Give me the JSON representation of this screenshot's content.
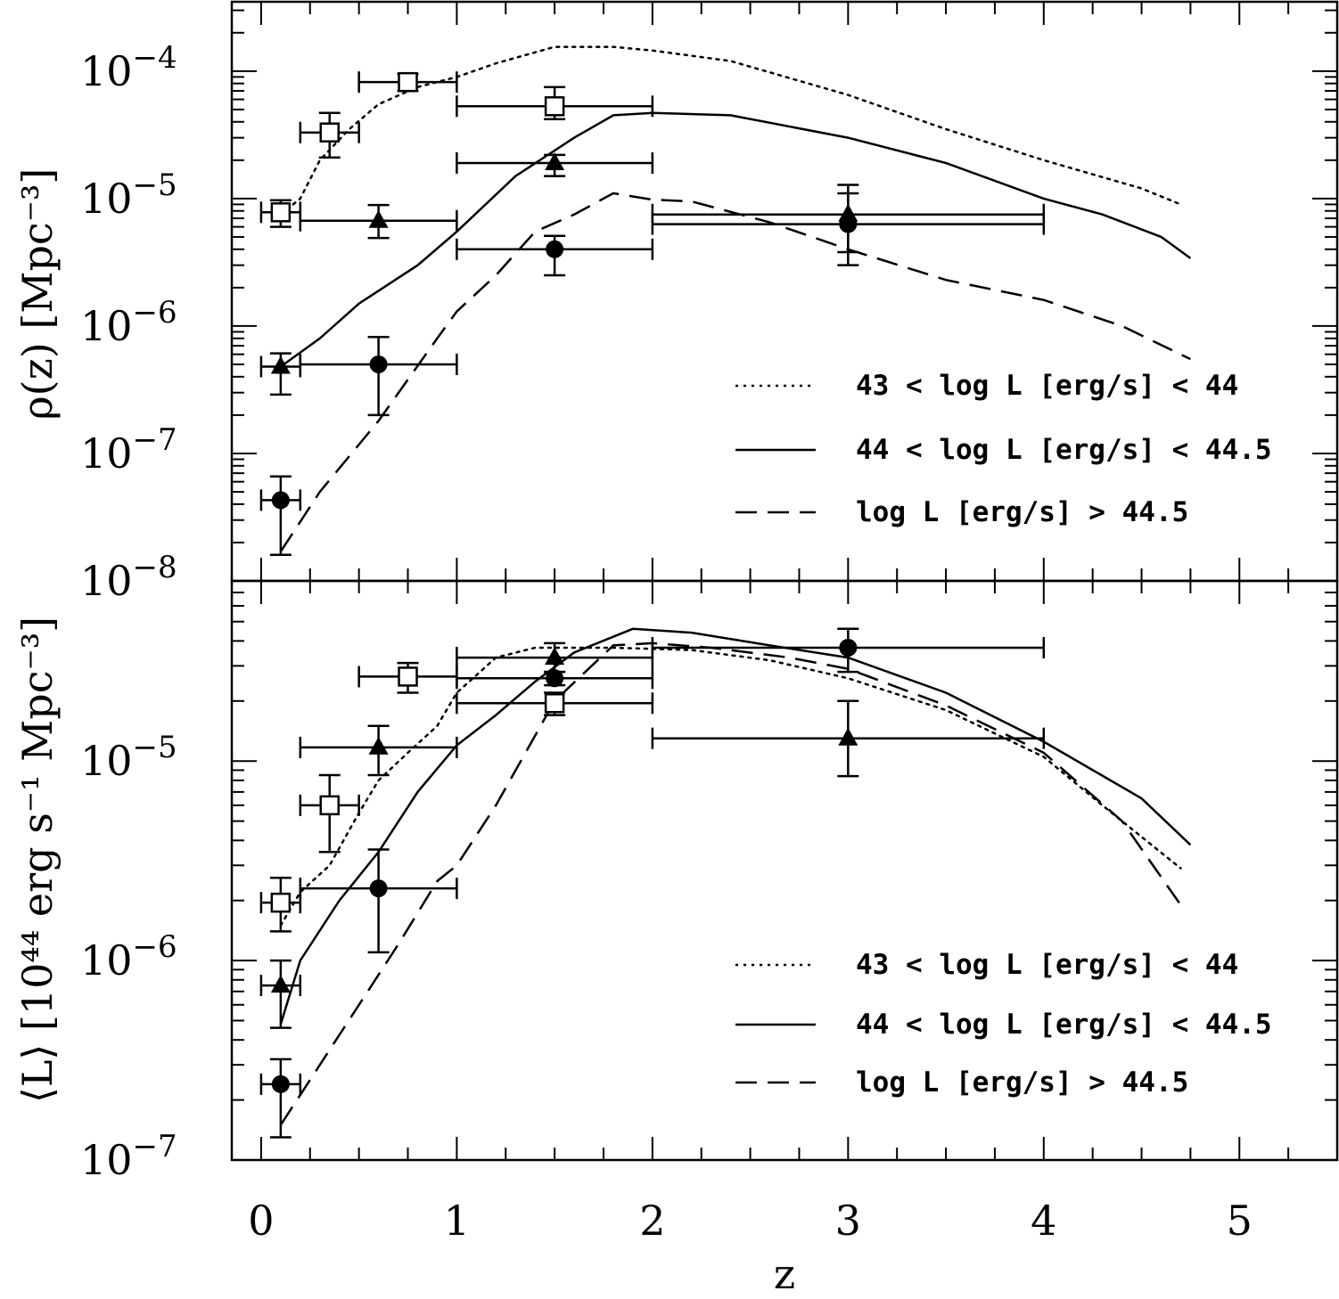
{
  "chart_data": [
    {
      "type": "line",
      "panel": "top",
      "ylabel": "ρ(z) [Mpc⁻³]",
      "yscale": "log",
      "ylim": [
        1e-08,
        0.00035
      ],
      "xlim": [
        -0.15,
        5.5
      ],
      "ytick_labels": [
        {
          "value": 1e-08,
          "exp": "−8"
        },
        {
          "value": 1e-07,
          "exp": "−7"
        },
        {
          "value": 1e-06,
          "exp": "−6"
        },
        {
          "value": 1e-05,
          "exp": "−5"
        },
        {
          "value": 0.0001,
          "exp": "−4"
        }
      ],
      "series": [
        {
          "name": "43 < log L [erg/s] < 44",
          "style": "dotted",
          "points": [
            [
              0.1,
              7.5e-06
            ],
            [
              0.2,
              1e-05
            ],
            [
              0.3,
              2e-05
            ],
            [
              0.45,
              3.5e-05
            ],
            [
              0.6,
              5.5e-05
            ],
            [
              0.8,
              7.5e-05
            ],
            [
              1.0,
              9e-05
            ],
            [
              1.2,
              0.000115
            ],
            [
              1.5,
              0.000155
            ],
            [
              1.8,
              0.000155
            ],
            [
              2.0,
              0.000145
            ],
            [
              2.4,
              0.00012
            ],
            [
              3.0,
              6.5e-05
            ],
            [
              3.5,
              3.5e-05
            ],
            [
              4.0,
              2e-05
            ],
            [
              4.5,
              1.2e-05
            ],
            [
              4.7,
              9e-06
            ]
          ]
        },
        {
          "name": "44 < log L [erg/s] < 44.5",
          "style": "solid",
          "points": [
            [
              0.1,
              4.8e-07
            ],
            [
              0.3,
              8e-07
            ],
            [
              0.5,
              1.5e-06
            ],
            [
              0.8,
              3e-06
            ],
            [
              1.0,
              5.5e-06
            ],
            [
              1.3,
              1.5e-05
            ],
            [
              1.6,
              3e-05
            ],
            [
              1.8,
              4.5e-05
            ],
            [
              2.0,
              4.7e-05
            ],
            [
              2.4,
              4.5e-05
            ],
            [
              3.0,
              3e-05
            ],
            [
              3.5,
              1.9e-05
            ],
            [
              4.0,
              1e-05
            ],
            [
              4.3,
              7.5e-06
            ],
            [
              4.6,
              5e-06
            ],
            [
              4.75,
              3.4e-06
            ]
          ]
        },
        {
          "name": "log L [erg/s] > 44.5",
          "style": "dashed",
          "points": [
            [
              0.1,
              1.7e-08
            ],
            [
              0.3,
              5e-08
            ],
            [
              0.6,
              1.8e-07
            ],
            [
              0.9,
              8e-07
            ],
            [
              1.0,
              1.3e-06
            ],
            [
              1.2,
              2.5e-06
            ],
            [
              1.4,
              5.5e-06
            ],
            [
              1.6,
              7.5e-06
            ],
            [
              1.8,
              1.1e-05
            ],
            [
              2.0,
              9.8e-06
            ],
            [
              2.2,
              9.5e-06
            ],
            [
              2.6,
              6.5e-06
            ],
            [
              3.0,
              4e-06
            ],
            [
              3.5,
              2.3e-06
            ],
            [
              4.0,
              1.6e-06
            ],
            [
              4.4,
              1e-06
            ],
            [
              4.75,
              5.5e-07
            ]
          ]
        }
      ],
      "data_points": [
        {
          "marker": "open-square",
          "points": [
            {
              "x": 0.1,
              "xerr": [
                0.0,
                0.2
              ],
              "y": 7.8e-06,
              "yerr": [
                6e-06,
                9.7e-06
              ]
            },
            {
              "x": 0.35,
              "xerr": [
                0.2,
                0.5
              ],
              "y": 3.3e-05,
              "yerr": [
                2.1e-05,
                4.7e-05
              ]
            },
            {
              "x": 0.75,
              "xerr": [
                0.5,
                1.0
              ],
              "y": 8.2e-05,
              "yerr": [
                7e-05,
                9.5e-05
              ]
            },
            {
              "x": 1.5,
              "xerr": [
                1.0,
                2.0
              ],
              "y": 5.3e-05,
              "yerr": [
                4.2e-05,
                7.5e-05
              ]
            }
          ]
        },
        {
          "marker": "filled-triangle",
          "points": [
            {
              "x": 0.1,
              "xerr": [
                0.0,
                0.2
              ],
              "y": 4.8e-07,
              "yerr": [
                2.9e-07,
                6.1e-07
              ]
            },
            {
              "x": 0.6,
              "xerr": [
                0.2,
                1.0
              ],
              "y": 6.7e-06,
              "yerr": [
                4.9e-06,
                8.9e-06
              ]
            },
            {
              "x": 1.5,
              "xerr": [
                1.0,
                2.0
              ],
              "y": 1.9e-05,
              "yerr": [
                1.5e-05,
                2.2e-05
              ]
            },
            {
              "x": 3.0,
              "xerr": [
                2.0,
                4.0
              ],
              "y": 7.5e-06,
              "yerr": [
                3.8e-06,
                1.1e-05
              ]
            }
          ]
        },
        {
          "marker": "filled-circle",
          "points": [
            {
              "x": 0.1,
              "xerr": [
                0.0,
                0.2
              ],
              "y": 4.3e-08,
              "yerr": [
                1.6e-08,
                6.6e-08
              ]
            },
            {
              "x": 0.6,
              "xerr": [
                0.2,
                1.0
              ],
              "y": 5e-07,
              "yerr": [
                2e-07,
                8.2e-07
              ]
            },
            {
              "x": 1.5,
              "xerr": [
                1.0,
                2.0
              ],
              "y": 4e-06,
              "yerr": [
                2.5e-06,
                5.1e-06
              ]
            },
            {
              "x": 3.0,
              "xerr": [
                2.0,
                4.0
              ],
              "y": 6.3e-06,
              "yerr": [
                3e-06,
                1.28e-05
              ]
            }
          ]
        }
      ],
      "legend": {
        "placement": "lower-right",
        "entries": [
          "43 < log L [erg/s] < 44",
          "44 < log L [erg/s] < 44.5",
          "log L [erg/s] > 44.5"
        ]
      }
    },
    {
      "type": "line",
      "panel": "bottom",
      "ylabel": "⟨L⟩ [10⁴⁴ erg s⁻¹ Mpc⁻³]",
      "xlabel": "z",
      "yscale": "log",
      "ylim": [
        1e-07,
        8e-05
      ],
      "xlim": [
        -0.15,
        5.5
      ],
      "ytick_labels": [
        {
          "value": 1e-07,
          "exp": "−7"
        },
        {
          "value": 1e-06,
          "exp": "−6"
        },
        {
          "value": 1e-05,
          "exp": "−5"
        }
      ],
      "xtick_labels": [
        "0",
        "1",
        "2",
        "3",
        "4",
        "5"
      ],
      "series": [
        {
          "name": "43 < log L [erg/s] < 44",
          "style": "dotted",
          "points": [
            [
              0.1,
              1.5e-06
            ],
            [
              0.2,
              2.2e-06
            ],
            [
              0.35,
              3e-06
            ],
            [
              0.5,
              5.5e-06
            ],
            [
              0.6,
              8e-06
            ],
            [
              0.75,
              1.1e-05
            ],
            [
              0.9,
              1.5e-05
            ],
            [
              1.0,
              2.2e-05
            ],
            [
              1.2,
              3.3e-05
            ],
            [
              1.4,
              3.7e-05
            ],
            [
              1.6,
              3.7e-05
            ],
            [
              1.8,
              3.7e-05
            ],
            [
              2.2,
              3.6e-05
            ],
            [
              2.6,
              3.2e-05
            ],
            [
              3.0,
              2.6e-05
            ],
            [
              3.5,
              1.8e-05
            ],
            [
              4.0,
              1.05e-05
            ],
            [
              4.3,
              6e-06
            ],
            [
              4.7,
              2.9e-06
            ]
          ]
        },
        {
          "name": "44 < log L [erg/s] < 44.5",
          "style": "solid",
          "points": [
            [
              0.1,
              4.8e-07
            ],
            [
              0.2,
              1e-06
            ],
            [
              0.4,
              2e-06
            ],
            [
              0.6,
              3.5e-06
            ],
            [
              0.8,
              7e-06
            ],
            [
              1.0,
              1.2e-05
            ],
            [
              1.2,
              1.7e-05
            ],
            [
              1.4,
              2.5e-05
            ],
            [
              1.6,
              3.5e-05
            ],
            [
              1.9,
              4.6e-05
            ],
            [
              2.2,
              4.4e-05
            ],
            [
              2.6,
              3.8e-05
            ],
            [
              3.0,
              3.3e-05
            ],
            [
              3.5,
              2.2e-05
            ],
            [
              4.0,
              1.25e-05
            ],
            [
              4.5,
              6.5e-06
            ],
            [
              4.75,
              3.8e-06
            ]
          ]
        },
        {
          "name": "log L [erg/s] > 44.5",
          "style": "dashed",
          "points": [
            [
              0.1,
              1.5e-07
            ],
            [
              0.3,
              3e-07
            ],
            [
              0.5,
              6e-07
            ],
            [
              0.7,
              1.2e-06
            ],
            [
              0.9,
              2.5e-06
            ],
            [
              1.0,
              3e-06
            ],
            [
              1.2,
              6e-06
            ],
            [
              1.5,
              2e-05
            ],
            [
              1.8,
              3.8e-05
            ],
            [
              2.0,
              3.9e-05
            ],
            [
              2.3,
              3.7e-05
            ],
            [
              2.7,
              3.3e-05
            ],
            [
              3.0,
              2.9e-05
            ],
            [
              3.5,
              1.9e-05
            ],
            [
              4.0,
              1.1e-05
            ],
            [
              4.4,
              5e-06
            ],
            [
              4.7,
              1.9e-06
            ]
          ]
        }
      ],
      "data_points": [
        {
          "marker": "open-square",
          "points": [
            {
              "x": 0.1,
              "xerr": [
                0.0,
                0.2
              ],
              "y": 1.95e-06,
              "yerr": [
                1.4e-06,
                2.6e-06
              ]
            },
            {
              "x": 0.35,
              "xerr": [
                0.2,
                0.5
              ],
              "y": 6e-06,
              "yerr": [
                3.5e-06,
                8.5e-06
              ]
            },
            {
              "x": 0.75,
              "xerr": [
                0.5,
                1.0
              ],
              "y": 2.65e-05,
              "yerr": [
                2.2e-05,
                3.1e-05
              ]
            },
            {
              "x": 1.5,
              "xerr": [
                1.0,
                2.0
              ],
              "y": 1.95e-05,
              "yerr": [
                1.7e-05,
                2.2e-05
              ]
            }
          ]
        },
        {
          "marker": "filled-triangle",
          "points": [
            {
              "x": 0.1,
              "xerr": [
                0.0,
                0.2
              ],
              "y": 7.5e-07,
              "yerr": [
                4.6e-07,
                1e-06
              ]
            },
            {
              "x": 0.6,
              "xerr": [
                0.2,
                1.0
              ],
              "y": 1.17e-05,
              "yerr": [
                8.5e-06,
                1.5e-05
              ]
            },
            {
              "x": 1.5,
              "xerr": [
                1.0,
                2.0
              ],
              "y": 3.3e-05,
              "yerr": [
                2.8e-05,
                3.9e-05
              ]
            },
            {
              "x": 3.0,
              "xerr": [
                2.0,
                4.0
              ],
              "y": 1.3e-05,
              "yerr": [
                8.4e-06,
                2e-05
              ]
            }
          ]
        },
        {
          "marker": "filled-circle",
          "points": [
            {
              "x": 0.1,
              "xerr": [
                0.0,
                0.2
              ],
              "y": 2.4e-07,
              "yerr": [
                1.3e-07,
                3.2e-07
              ]
            },
            {
              "x": 0.6,
              "xerr": [
                0.2,
                1.0
              ],
              "y": 2.3e-06,
              "yerr": [
                1.1e-06,
                3.6e-06
              ]
            },
            {
              "x": 1.5,
              "xerr": [
                1.0,
                2.0
              ],
              "y": 2.6e-05,
              "yerr": [
                2.4e-05,
                2.8e-05
              ]
            },
            {
              "x": 3.0,
              "xerr": [
                2.0,
                4.0
              ],
              "y": 3.7e-05,
              "yerr": [
                2.8e-05,
                4.6e-05
              ]
            }
          ]
        }
      ],
      "legend": {
        "placement": "lower-right",
        "entries": [
          "43 < log L [erg/s] < 44",
          "44 < log L [erg/s] < 44.5",
          "log L [erg/s] > 44.5"
        ]
      }
    }
  ]
}
